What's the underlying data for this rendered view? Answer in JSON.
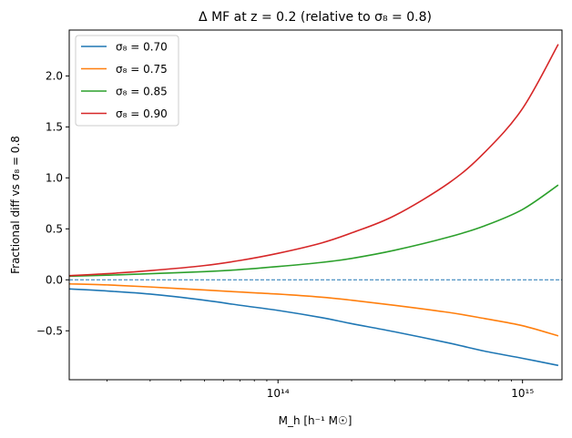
{
  "chart_data": {
    "type": "line",
    "title": "Δ MF at z = 0.2 (relative to σ₈ = 0.8)",
    "xlabel": "M_h [h⁻¹ M☉]",
    "ylabel": "Fractional diff vs σ₈ = 0.8",
    "x_scale": "log",
    "xlim": [
      14000000000000.0,
      1450000000000000.0
    ],
    "ylim": [
      -0.98,
      2.45
    ],
    "x_ticks": [
      {
        "value": 100000000000000.0,
        "label": "10¹⁴"
      },
      {
        "value": 1000000000000000.0,
        "label": "10¹⁵"
      }
    ],
    "y_ticks": [
      {
        "value": -0.5,
        "label": "−0.5"
      },
      {
        "value": 0.0,
        "label": "0.0"
      },
      {
        "value": 0.5,
        "label": "0.5"
      },
      {
        "value": 1.0,
        "label": "1.0"
      },
      {
        "value": 1.5,
        "label": "1.5"
      },
      {
        "value": 2.0,
        "label": "2.0"
      }
    ],
    "grid": false,
    "legend_position": "top-left",
    "reference_line": {
      "y": 0.0,
      "style": "dashed",
      "color": "#1f77b4"
    },
    "series": [
      {
        "name": "σ₈ = 0.70",
        "color": "#1f77b4",
        "x": [
          14000000000000.0,
          20000000000000.0,
          30000000000000.0,
          50000000000000.0,
          70000000000000.0,
          100000000000000.0,
          150000000000000.0,
          200000000000000.0,
          300000000000000.0,
          500000000000000.0,
          700000000000000.0,
          1000000000000000.0,
          1400000000000000.0
        ],
        "y": [
          -0.09,
          -0.11,
          -0.14,
          -0.2,
          -0.25,
          -0.3,
          -0.37,
          -0.43,
          -0.51,
          -0.62,
          -0.7,
          -0.77,
          -0.84
        ]
      },
      {
        "name": "σ₈ = 0.75",
        "color": "#ff7f0e",
        "x": [
          14000000000000.0,
          20000000000000.0,
          30000000000000.0,
          50000000000000.0,
          70000000000000.0,
          100000000000000.0,
          150000000000000.0,
          200000000000000.0,
          300000000000000.0,
          500000000000000.0,
          700000000000000.0,
          1000000000000000.0,
          1400000000000000.0
        ],
        "y": [
          -0.04,
          -0.05,
          -0.07,
          -0.1,
          -0.12,
          -0.14,
          -0.17,
          -0.2,
          -0.25,
          -0.32,
          -0.38,
          -0.45,
          -0.55
        ]
      },
      {
        "name": "σ₈ = 0.85",
        "color": "#2ca02c",
        "x": [
          14000000000000.0,
          20000000000000.0,
          30000000000000.0,
          50000000000000.0,
          70000000000000.0,
          100000000000000.0,
          150000000000000.0,
          200000000000000.0,
          300000000000000.0,
          500000000000000.0,
          700000000000000.0,
          1000000000000000.0,
          1400000000000000.0
        ],
        "y": [
          0.035,
          0.045,
          0.06,
          0.08,
          0.1,
          0.13,
          0.17,
          0.21,
          0.29,
          0.42,
          0.53,
          0.69,
          0.93
        ]
      },
      {
        "name": "σ₈ = 0.90",
        "color": "#d62728",
        "x": [
          14000000000000.0,
          20000000000000.0,
          30000000000000.0,
          50000000000000.0,
          70000000000000.0,
          100000000000000.0,
          150000000000000.0,
          200000000000000.0,
          300000000000000.0,
          500000000000000.0,
          700000000000000.0,
          1000000000000000.0,
          1400000000000000.0
        ],
        "y": [
          0.04,
          0.06,
          0.09,
          0.14,
          0.19,
          0.26,
          0.36,
          0.46,
          0.63,
          0.95,
          1.25,
          1.68,
          2.31
        ]
      }
    ]
  }
}
